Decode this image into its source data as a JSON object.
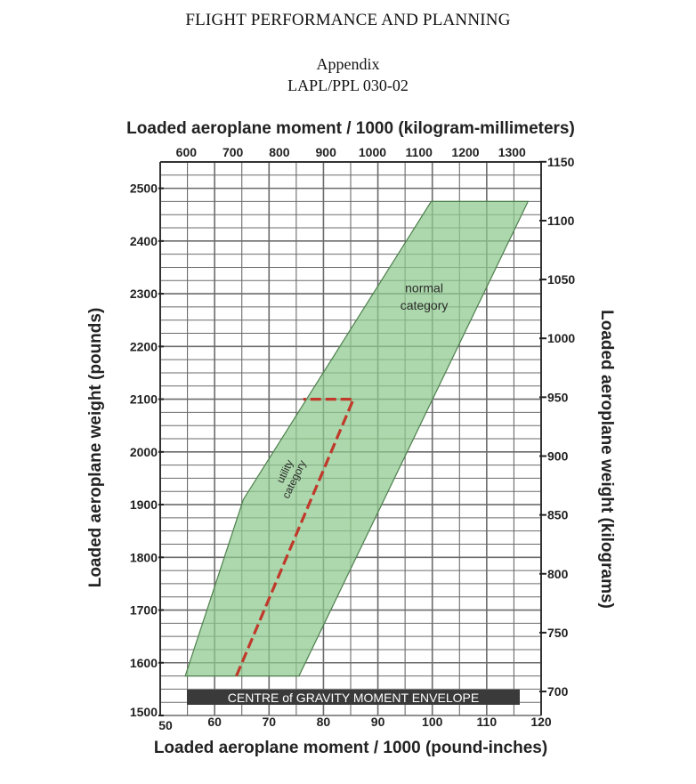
{
  "header": {
    "title": "FLIGHT PERFORMANCE AND PLANNING",
    "appendix": "Appendix",
    "reference": "LAPL/PPL 030-02"
  },
  "chart_data": {
    "type": "area",
    "title": "CENTRE of GRAVITY MOMENT ENVELOPE",
    "xlabel": "Loaded aeroplane moment / 1000 (pound-inches)",
    "ylabel": "Loaded aeroplane weight (pounds)",
    "x2label": "Loaded aeroplane moment / 1000 (kilogram-millimeters)",
    "y2label": "Loaded aeroplane weight (kilograms)",
    "xlim": [
      50,
      120
    ],
    "ylim": [
      1500,
      2550
    ],
    "x_ticks": [
      50,
      60,
      70,
      80,
      90,
      100,
      110,
      120
    ],
    "y_ticks": [
      1500,
      1600,
      1700,
      1800,
      1900,
      2000,
      2100,
      2200,
      2300,
      2400,
      2500
    ],
    "x2_ticks": [
      600,
      700,
      800,
      900,
      1000,
      1100,
      1200,
      1300
    ],
    "y2_ticks": [
      700,
      750,
      800,
      850,
      900,
      950,
      1000,
      1050,
      1100,
      1150
    ],
    "grid": true,
    "series": [
      {
        "name": "normal category",
        "color": "#8ec98e",
        "points": [
          [
            54.6,
            1575
          ],
          [
            75.5,
            1575
          ],
          [
            117.6,
            2475
          ],
          [
            99.8,
            2475
          ],
          [
            65.3,
            1910
          ],
          [
            54.6,
            1575
          ]
        ]
      },
      {
        "name": "utility category",
        "color": "#c0392b",
        "style": "dashed",
        "points": [
          [
            64.0,
            1575
          ],
          [
            85.5,
            2100
          ],
          [
            76.3,
            2100
          ]
        ]
      }
    ],
    "annotations": [
      {
        "text": "normal",
        "x": 98.5,
        "y": 2303
      },
      {
        "text": "category",
        "x": 98.5,
        "y": 2270
      },
      {
        "text": "utility",
        "x": 73.5,
        "y": 1960,
        "rotate": -64
      },
      {
        "text": "category",
        "x": 75.2,
        "y": 1945,
        "rotate": -64
      }
    ]
  }
}
